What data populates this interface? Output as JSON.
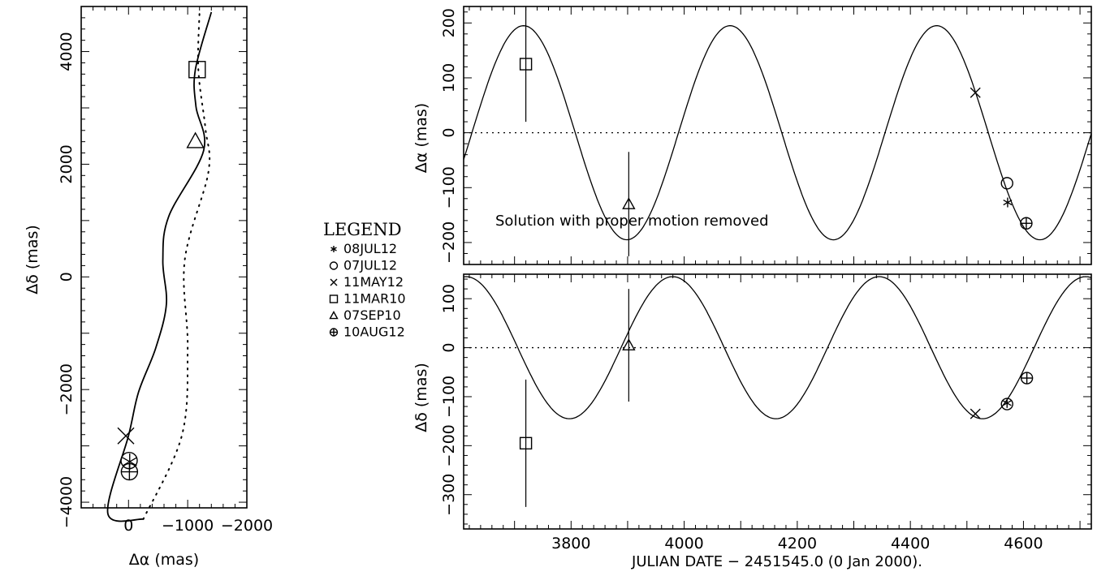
{
  "chart_data": [
    {
      "type": "line",
      "panel": "sky-track",
      "xlabel": "Δα (mas)",
      "ylabel": "Δδ (mas)",
      "xlim": [
        800,
        -2000
      ],
      "ylim": [
        -4100,
        4800
      ],
      "x_ticks": [
        "0",
        "−1000",
        "−2000"
      ],
      "y_ticks": [
        "−4000",
        "−2000",
        "0",
        "2000",
        "4000"
      ],
      "series": [
        {
          "style": "solid",
          "points": [
            [
              -250,
              -4300
            ],
            [
              350,
              -4200
            ],
            [
              1,
              -2822
            ],
            [
              -170,
              -2043
            ],
            [
              -460,
              -1263
            ],
            [
              -640,
              -484
            ],
            [
              -580,
              295
            ],
            [
              -680,
              1075
            ],
            [
              -1270,
              2244
            ],
            [
              -1140,
              3024
            ],
            [
              -1130,
              3680
            ],
            [
              -1400,
              4700
            ]
          ]
        },
        {
          "style": "dotted",
          "points": [
            [
              -250,
              -4300
            ],
            [
              -900,
              -2822
            ],
            [
              -1000,
              -1263
            ],
            [
              -950,
              295
            ],
            [
              -1350,
              1859
            ],
            [
              -1300,
              2634
            ],
            [
              -1180,
              3680
            ],
            [
              -1200,
              4700
            ]
          ]
        }
      ],
      "observations": [
        {
          "label": "11MAY12",
          "dalpha": 45,
          "ddelta": -2822
        },
        {
          "label": "07JUL12",
          "dalpha": -10,
          "ddelta": -3260
        },
        {
          "label": "08JUL12",
          "dalpha": -20,
          "ddelta": -3280
        },
        {
          "label": "10AUG12",
          "dalpha": -15,
          "ddelta": -3460
        },
        {
          "label": "07SEP10",
          "dalpha": -1130,
          "ddelta": 2410
        },
        {
          "label": "11MAR10",
          "dalpha": -1160,
          "ddelta": 3680
        }
      ]
    },
    {
      "type": "line",
      "panel": "dalpha-vs-time",
      "ylabel": "Δα (mas)",
      "annotation": "Solution with proper motion removed",
      "xlim": [
        3610,
        4720
      ],
      "ylim": [
        -240,
        230
      ],
      "y_ticks": [
        "−200",
        "−100",
        "0",
        "100",
        "200"
      ],
      "model": {
        "amplitude": 195,
        "period": 365.25,
        "peak_at": 3716
      },
      "observations": [
        {
          "label": "11MAR10",
          "jd": 3720,
          "value": 125,
          "err": 105
        },
        {
          "label": "07SEP10",
          "jd": 3902,
          "value": -130,
          "err": 95
        },
        {
          "label": "11MAY12",
          "jd": 4515,
          "value": 73,
          "err": 0
        },
        {
          "label": "07JUL12",
          "jd": 4571,
          "value": -92,
          "err": 0
        },
        {
          "label": "08JUL12",
          "jd": 4572,
          "value": -127,
          "err": 0
        },
        {
          "label": "10AUG12",
          "jd": 4605,
          "value": -165,
          "err": 0
        }
      ]
    },
    {
      "type": "line",
      "panel": "ddelta-vs-time",
      "xlabel": "JULIAN DATE − 2451545.0 (0 Jan 2000).",
      "ylabel": "Δδ (mas)",
      "xlim": [
        3610,
        4720
      ],
      "ylim": [
        -370,
        150
      ],
      "x_ticks": [
        "3800",
        "4000",
        "4200",
        "4400",
        "4600"
      ],
      "y_ticks": [
        "−300",
        "−200",
        "−100",
        "0",
        "100"
      ],
      "model": {
        "amplitude": 145,
        "period": 365.25,
        "trough_at": 3797
      },
      "observations": [
        {
          "label": "11MAR10",
          "jd": 3720,
          "value": -195,
          "err": 130
        },
        {
          "label": "07SEP10",
          "jd": 3902,
          "value": 5,
          "err": 115
        },
        {
          "label": "11MAY12",
          "jd": 4515,
          "value": -135,
          "err": 0
        },
        {
          "label": "07JUL12",
          "jd": 4571,
          "value": -115,
          "err": 0
        },
        {
          "label": "08JUL12",
          "jd": 4571,
          "value": -113,
          "err": 0
        },
        {
          "label": "10AUG12",
          "jd": 4606,
          "value": -62,
          "err": 0
        }
      ]
    }
  ],
  "legend": {
    "title": "LEGEND",
    "entries": [
      {
        "symbol": "asterisk",
        "label": "08JUL12"
      },
      {
        "symbol": "circle",
        "label": "07JUL12"
      },
      {
        "symbol": "cross",
        "label": "11MAY12"
      },
      {
        "symbol": "square",
        "label": "11MAR10"
      },
      {
        "symbol": "triangle",
        "label": "07SEP10"
      },
      {
        "symbol": "circle-plus",
        "label": "10AUG12"
      }
    ]
  }
}
